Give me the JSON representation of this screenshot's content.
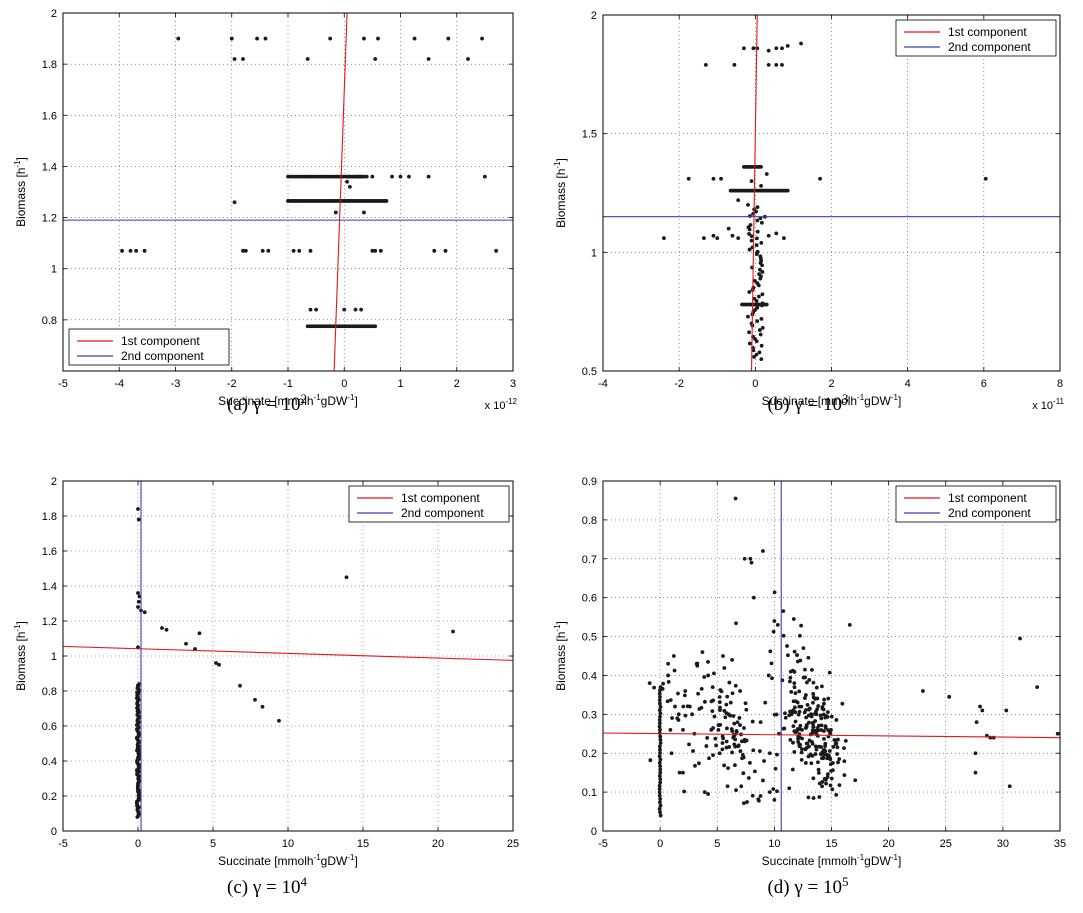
{
  "chart_data": [
    {
      "type": "scatter",
      "caption_prefix": "(a) ",
      "caption_sym": "γ = 10",
      "caption_exp": "2",
      "xlabel_text": "Succinate [mmolh",
      "xlabel_unit_sup": "-1",
      "xlabel_tail": "gDW",
      "xlabel_tail_sup": "-1",
      "xlabel_close": "]",
      "ylabel_text": "Biomass [h",
      "ylabel_sup": "-1",
      "ylabel_close": "]",
      "x_multiplier_base": "x 10",
      "x_multiplier_exp": "-12",
      "xlim": [
        -5,
        3
      ],
      "ylim": [
        0.6,
        2
      ],
      "xticks": [
        -5,
        -4,
        -3,
        -2,
        -1,
        0,
        1,
        2,
        3
      ],
      "yticks": [
        0.8,
        1,
        1.2,
        1.4,
        1.6,
        1.8,
        2
      ],
      "xtick_labels": [
        "-5",
        "-4",
        "-3",
        "-2",
        "-1",
        "0",
        "1",
        "2",
        "3"
      ],
      "ytick_labels": [
        "0.8",
        "1",
        "1.2",
        "1.4",
        "1.6",
        "1.8",
        "2"
      ],
      "grid": true,
      "legend_position": "bottom-left",
      "legend": [
        {
          "name": "1st component",
          "color": "#e8141c"
        },
        {
          "name": "2nd component",
          "color": "#3c3cb4"
        }
      ],
      "component_lines": [
        {
          "x1": 0.05,
          "y1": 2.0,
          "x2": -0.18,
          "y2": 0.6
        },
        {
          "x1": -5,
          "y1": 1.19,
          "x2": 3,
          "y2": 1.19
        }
      ],
      "points": [
        [
          -2.95,
          1.9
        ],
        [
          -2.0,
          1.9
        ],
        [
          -1.55,
          1.9
        ],
        [
          -1.4,
          1.9
        ],
        [
          -0.25,
          1.9
        ],
        [
          0.35,
          1.9
        ],
        [
          0.6,
          1.9
        ],
        [
          1.25,
          1.9
        ],
        [
          1.85,
          1.9
        ],
        [
          2.45,
          1.9
        ],
        [
          -1.95,
          1.82
        ],
        [
          -1.8,
          1.82
        ],
        [
          -0.65,
          1.82
        ],
        [
          0.55,
          1.82
        ],
        [
          1.5,
          1.82
        ],
        [
          2.2,
          1.82
        ],
        [
          -0.05,
          1.36
        ],
        [
          0.05,
          1.36
        ],
        [
          0.1,
          1.36
        ],
        [
          0.2,
          1.36
        ],
        [
          0.25,
          1.36
        ],
        [
          0.3,
          1.36
        ],
        [
          0.4,
          1.36
        ],
        [
          0.5,
          1.36
        ],
        [
          0.85,
          1.36
        ],
        [
          1.0,
          1.36
        ],
        [
          1.15,
          1.36
        ],
        [
          1.5,
          1.36
        ],
        [
          2.5,
          1.36
        ],
        [
          0.05,
          1.34
        ],
        [
          0.1,
          1.32
        ],
        [
          -1.95,
          1.26
        ],
        [
          0.35,
          1.22
        ],
        [
          -0.15,
          1.22
        ],
        [
          -3.95,
          1.07
        ],
        [
          -3.8,
          1.07
        ],
        [
          -3.7,
          1.07
        ],
        [
          -3.55,
          1.07
        ],
        [
          -1.8,
          1.07
        ],
        [
          -1.75,
          1.07
        ],
        [
          -1.45,
          1.07
        ],
        [
          -1.35,
          1.07
        ],
        [
          -0.9,
          1.07
        ],
        [
          -0.8,
          1.07
        ],
        [
          -0.6,
          1.07
        ],
        [
          0.5,
          1.07
        ],
        [
          0.55,
          1.07
        ],
        [
          0.65,
          1.07
        ],
        [
          1.6,
          1.07
        ],
        [
          1.8,
          1.07
        ],
        [
          2.7,
          1.07
        ],
        [
          -0.6,
          0.84
        ],
        [
          -0.5,
          0.84
        ],
        [
          0.0,
          0.84
        ],
        [
          0.2,
          0.84
        ],
        [
          0.3,
          0.84
        ]
      ],
      "horizontal_bands": [
        {
          "y": 1.36,
          "x_from": -1.0,
          "x_to": 0.35,
          "n": 34
        },
        {
          "y": 1.265,
          "x_from": -1.0,
          "x_to": 0.75,
          "n": 60
        },
        {
          "y": 0.775,
          "x_from": -0.65,
          "x_to": 0.55,
          "n": 34
        }
      ]
    },
    {
      "type": "scatter",
      "caption_prefix": "(b) ",
      "caption_sym": "γ = 10",
      "caption_exp": "3",
      "xlabel_text": "Succinate [mmolh",
      "xlabel_unit_sup": "-1",
      "xlabel_tail": "gDW",
      "xlabel_tail_sup": "-1",
      "xlabel_close": "]",
      "ylabel_text": "Biomass [h",
      "ylabel_sup": "-1",
      "ylabel_close": "]",
      "x_multiplier_base": "x 10",
      "x_multiplier_exp": "-11",
      "xlim": [
        -4,
        8
      ],
      "ylim": [
        0.5,
        2
      ],
      "xticks": [
        -4,
        -2,
        0,
        2,
        4,
        6,
        8
      ],
      "yticks": [
        0.5,
        1,
        1.5,
        2
      ],
      "xtick_labels": [
        "-4",
        "-2",
        "0",
        "2",
        "4",
        "6",
        "8"
      ],
      "ytick_labels": [
        "0.5",
        "1",
        "1.5",
        "2"
      ],
      "grid": true,
      "legend_position": "top-right",
      "legend": [
        {
          "name": "1st component",
          "color": "#e8141c"
        },
        {
          "name": "2nd component",
          "color": "#3c3cb4"
        }
      ],
      "component_lines": [
        {
          "x1": 0.05,
          "y1": 2.0,
          "x2": -0.1,
          "y2": 0.5
        },
        {
          "x1": -4,
          "y1": 1.15,
          "x2": 8,
          "y2": 1.15
        }
      ],
      "points": [
        [
          -1.3,
          1.79
        ],
        [
          -0.55,
          1.79
        ],
        [
          0.35,
          1.79
        ],
        [
          0.55,
          1.79
        ],
        [
          0.7,
          1.79
        ],
        [
          0.35,
          1.85
        ],
        [
          0.55,
          1.86
        ],
        [
          0.7,
          1.86
        ],
        [
          0.85,
          1.87
        ],
        [
          1.2,
          1.88
        ],
        [
          -0.05,
          1.86
        ],
        [
          0.05,
          1.86
        ],
        [
          -0.3,
          1.86
        ],
        [
          -1.75,
          1.31
        ],
        [
          -0.9,
          1.31
        ],
        [
          -1.1,
          1.31
        ],
        [
          1.7,
          1.31
        ],
        [
          6.05,
          1.31
        ],
        [
          -2.4,
          1.06
        ],
        [
          -1.35,
          1.06
        ],
        [
          -1.1,
          1.07
        ],
        [
          -1.0,
          1.06
        ],
        [
          -0.6,
          1.07
        ],
        [
          -0.45,
          1.06
        ],
        [
          0.35,
          1.07
        ],
        [
          0.55,
          1.08
        ],
        [
          0.75,
          1.06
        ],
        [
          -0.7,
          1.1
        ],
        [
          0.25,
          1.15
        ],
        [
          -0.45,
          1.22
        ],
        [
          -0.1,
          1.3
        ],
        [
          0.15,
          1.28
        ],
        [
          0.3,
          1.33
        ],
        [
          -0.25,
          1.36
        ],
        [
          -0.15,
          1.36
        ],
        [
          0.0,
          1.36
        ],
        [
          0.1,
          1.36
        ]
      ],
      "horizontal_bands": [
        {
          "y": 1.36,
          "x_from": -0.3,
          "x_to": 0.15,
          "n": 10
        },
        {
          "y": 1.26,
          "x_from": -0.65,
          "x_to": 0.85,
          "n": 40
        },
        {
          "y": 0.78,
          "x_from": -0.35,
          "x_to": 0.3,
          "n": 14
        }
      ],
      "vertical_bands": [
        {
          "x": 0.0,
          "y_from": 0.55,
          "y_to": 1.2,
          "n": 70,
          "jitter": 0.2
        }
      ]
    },
    {
      "type": "scatter",
      "caption_prefix": "(c) ",
      "caption_sym": "γ = 10",
      "caption_exp": "4",
      "xlabel_text": "Succinate [mmolh",
      "xlabel_unit_sup": "-1",
      "xlabel_tail": "gDW",
      "xlabel_tail_sup": "-1",
      "xlabel_close": "]",
      "ylabel_text": "Biomass [h",
      "ylabel_sup": "-1",
      "ylabel_close": "]",
      "xlim": [
        -5,
        25
      ],
      "ylim": [
        0,
        2
      ],
      "xticks": [
        -5,
        0,
        5,
        10,
        15,
        20,
        25
      ],
      "yticks": [
        0,
        0.2,
        0.4,
        0.6,
        0.8,
        1,
        1.2,
        1.4,
        1.6,
        1.8,
        2
      ],
      "xtick_labels": [
        "-5",
        "0",
        "5",
        "10",
        "15",
        "20",
        "25"
      ],
      "ytick_labels": [
        "0",
        "0.2",
        "0.4",
        "0.6",
        "0.8",
        "1",
        "1.2",
        "1.4",
        "1.6",
        "1.8",
        "2"
      ],
      "grid": true,
      "legend_position": "top-right",
      "legend": [
        {
          "name": "1st component",
          "color": "#e8141c"
        },
        {
          "name": "2nd component",
          "color": "#3c3cb4"
        }
      ],
      "component_lines": [
        {
          "x1": -5,
          "y1": 1.055,
          "x2": 25,
          "y2": 0.975
        },
        {
          "x1": 0.2,
          "y1": 0.0,
          "x2": 0.2,
          "y2": 2.0
        }
      ],
      "points": [
        [
          0.0,
          1.84
        ],
        [
          0.05,
          1.78
        ],
        [
          0.0,
          1.36
        ],
        [
          0.1,
          1.34
        ],
        [
          0.05,
          1.31
        ],
        [
          0.0,
          1.28
        ],
        [
          0.2,
          1.26
        ],
        [
          0.45,
          1.25
        ],
        [
          0.0,
          1.05
        ],
        [
          1.6,
          1.16
        ],
        [
          1.9,
          1.15
        ],
        [
          3.2,
          1.07
        ],
        [
          3.8,
          1.04
        ],
        [
          4.1,
          1.13
        ],
        [
          5.2,
          0.96
        ],
        [
          5.4,
          0.95
        ],
        [
          6.8,
          0.83
        ],
        [
          7.8,
          0.75
        ],
        [
          8.3,
          0.71
        ],
        [
          9.4,
          0.63
        ],
        [
          13.9,
          1.45
        ],
        [
          21.0,
          1.14
        ]
      ],
      "vertical_bands": [
        {
          "x": 0.0,
          "y_from": 0.08,
          "y_to": 0.84,
          "n": 95,
          "jitter": 0.08
        }
      ]
    },
    {
      "type": "scatter",
      "caption_prefix": "(d) ",
      "caption_sym": "γ = 10",
      "caption_exp": "5",
      "xlabel_text": "Succinate [mmolh",
      "xlabel_unit_sup": "-1",
      "xlabel_tail": "gDW",
      "xlabel_tail_sup": "-1",
      "xlabel_close": "]",
      "ylabel_text": "Biomass [h",
      "ylabel_sup": "-1",
      "ylabel_close": "]",
      "xlim": [
        -5,
        35
      ],
      "ylim": [
        0,
        0.9
      ],
      "xticks": [
        -5,
        0,
        5,
        10,
        15,
        20,
        25,
        30,
        35
      ],
      "yticks": [
        0,
        0.1,
        0.2,
        0.3,
        0.4,
        0.5,
        0.6,
        0.7,
        0.8,
        0.9
      ],
      "xtick_labels": [
        "-5",
        "0",
        "5",
        "10",
        "15",
        "20",
        "25",
        "30",
        "35"
      ],
      "ytick_labels": [
        "0",
        "0.1",
        "0.2",
        "0.3",
        "0.4",
        "0.5",
        "0.6",
        "0.7",
        "0.8",
        "0.9"
      ],
      "grid": true,
      "legend_position": "top-right",
      "legend": [
        {
          "name": "1st component",
          "color": "#e8141c"
        },
        {
          "name": "2nd component",
          "color": "#3c3cb4"
        }
      ],
      "component_lines": [
        {
          "x1": -5,
          "y1": 0.252,
          "x2": 35,
          "y2": 0.24
        },
        {
          "x1": 10.6,
          "y1": 0.0,
          "x2": 10.6,
          "y2": 0.9
        }
      ],
      "points": [
        [
          6.6,
          0.855
        ],
        [
          7.4,
          0.7
        ],
        [
          7.9,
          0.7
        ],
        [
          8.0,
          0.69
        ],
        [
          8.2,
          0.6
        ],
        [
          9.0,
          0.72
        ],
        [
          10.0,
          0.54
        ],
        [
          10.3,
          0.53
        ],
        [
          11.7,
          0.545
        ],
        [
          16.6,
          0.53
        ],
        [
          23.0,
          0.36
        ],
        [
          25.3,
          0.345
        ],
        [
          27.7,
          0.28
        ],
        [
          28.0,
          0.32
        ],
        [
          28.2,
          0.31
        ],
        [
          28.6,
          0.245
        ],
        [
          28.9,
          0.24
        ],
        [
          29.2,
          0.24
        ],
        [
          27.6,
          0.2
        ],
        [
          27.6,
          0.15
        ],
        [
          30.3,
          0.31
        ],
        [
          30.6,
          0.115
        ],
        [
          31.5,
          0.495
        ],
        [
          33.0,
          0.37
        ],
        [
          34.8,
          0.25
        ],
        [
          2.0,
          0.15
        ],
        [
          1.7,
          0.15
        ],
        [
          3.9,
          0.1
        ],
        [
          4.2,
          0.095
        ],
        [
          5.9,
          0.115
        ],
        [
          7.1,
          0.115
        ],
        [
          9.0,
          0.13
        ],
        [
          9.6,
          0.1
        ],
        [
          10.0,
          0.08
        ],
        [
          11.3,
          0.11
        ],
        [
          0.7,
          0.4
        ],
        [
          0.7,
          0.43
        ],
        [
          1.2,
          0.45
        ],
        [
          3.2,
          0.43
        ],
        [
          3.7,
          0.46
        ],
        [
          4.2,
          0.4
        ],
        [
          5.5,
          0.45
        ],
        [
          6.3,
          0.44
        ],
        [
          9.5,
          0.4
        ],
        [
          1.0,
          0.2
        ],
        [
          0.9,
          0.26
        ],
        [
          1.3,
          0.32
        ],
        [
          2.2,
          0.36
        ],
        [
          2.8,
          0.3
        ],
        [
          2.6,
          0.32
        ],
        [
          3.0,
          0.25
        ],
        [
          4.6,
          0.37
        ],
        [
          5.1,
          0.26
        ],
        [
          6.0,
          0.3
        ],
        [
          6.4,
          0.24
        ],
        [
          9.2,
          0.33
        ],
        [
          8.8,
          0.28
        ],
        [
          9.6,
          0.2
        ],
        [
          10.4,
          0.25
        ],
        [
          10.1,
          0.16
        ],
        [
          9.1,
          0.18
        ],
        [
          1.5,
          0.29
        ],
        [
          2.0,
          0.26
        ],
        [
          4.9,
          0.22
        ],
        [
          7.0,
          0.36
        ]
      ],
      "vertical_bands": [
        {
          "x": 0.0,
          "y_from": 0.04,
          "y_to": 0.37,
          "n": 40,
          "jitter": 0.05
        }
      ],
      "clusters": [
        {
          "cx": 12.6,
          "cy": 0.3,
          "sx": 1.3,
          "sy": 0.09,
          "n": 140,
          "slope": -0.035
        },
        {
          "cx": 14.6,
          "cy": 0.22,
          "sx": 0.9,
          "sy": 0.07,
          "n": 90,
          "slope": -0.04
        },
        {
          "cx": 4.0,
          "cy": 0.3,
          "sx": 2.2,
          "sy": 0.08,
          "n": 60,
          "slope": 0.0
        },
        {
          "cx": 6.7,
          "cy": 0.24,
          "sx": 0.9,
          "sy": 0.07,
          "n": 60,
          "slope": -0.05
        }
      ]
    }
  ]
}
